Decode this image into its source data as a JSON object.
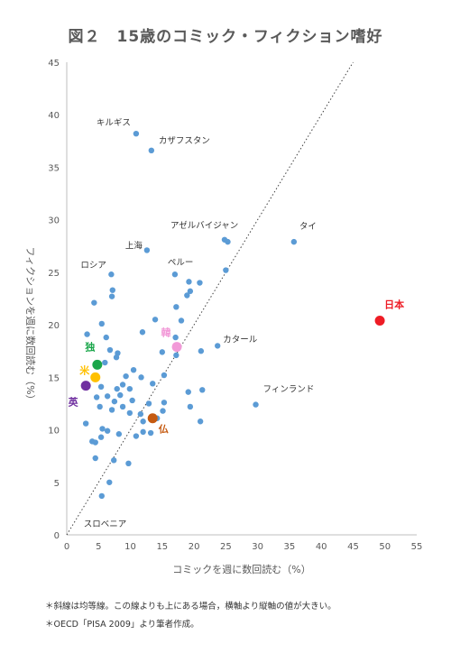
{
  "title": "図２　15歳のコミック・フィクション嗜好",
  "notes": [
    "＊斜線は均等線。この線よりも上にある場合，横軸より縦軸の値が大きい。",
    "＊OECD「PISA 2009」より筆者作成。"
  ],
  "chart_data": {
    "type": "scatter",
    "xlabel": "コミックを週に数回読む（%）",
    "ylabel": "フィクションを週に数回読む（%）",
    "xlim": [
      0,
      55
    ],
    "ylim": [
      0,
      45
    ],
    "xticks": [
      0,
      5,
      10,
      15,
      20,
      25,
      30,
      35,
      40,
      45,
      50,
      55
    ],
    "yticks": [
      0,
      5,
      10,
      15,
      20,
      25,
      30,
      35,
      40,
      45
    ],
    "grid": false,
    "reference_line": {
      "style": "dotted",
      "from": [
        0,
        0
      ],
      "to": [
        45,
        45
      ]
    },
    "point_color": "#5b9bd5",
    "labeled_points": [
      {
        "label": "キルギス",
        "x": 10.9,
        "y": 38.2
      },
      {
        "label": "カザフスタン",
        "x": 13.3,
        "y": 36.6
      },
      {
        "label": "アゼルバイジャン",
        "x": 24.8,
        "y": 28.1
      },
      {
        "label": "タイ",
        "x": 35.7,
        "y": 27.9
      },
      {
        "label": "上海",
        "x": 12.6,
        "y": 27.1
      },
      {
        "label": "ロシア",
        "x": 7.0,
        "y": 24.8
      },
      {
        "label": "ペルー",
        "x": 17.0,
        "y": 24.8
      },
      {
        "label": "カタール",
        "x": 23.7,
        "y": 18.0
      },
      {
        "label": "フィンランド",
        "x": 29.7,
        "y": 12.4
      },
      {
        "label": "スロベニア",
        "x": 5.5,
        "y": 3.7
      }
    ],
    "highlighted_points": [
      {
        "label": "日本",
        "x": 49.2,
        "y": 20.4,
        "color": "#ee1c25"
      },
      {
        "label": "韓",
        "x": 17.3,
        "y": 17.9,
        "color": "#f29ad8"
      },
      {
        "label": "独",
        "x": 4.8,
        "y": 16.2,
        "color": "#1aa64a"
      },
      {
        "label": "米",
        "x": 4.5,
        "y": 15.0,
        "color": "#ffc000"
      },
      {
        "label": "英",
        "x": 3.0,
        "y": 14.2,
        "color": "#7030a0"
      },
      {
        "label": "仏",
        "x": 13.5,
        "y": 11.1,
        "color": "#c55a11"
      }
    ],
    "other_points": [
      [
        4.3,
        22.1
      ],
      [
        3.2,
        19.1
      ],
      [
        5.5,
        20.1
      ],
      [
        6.2,
        18.8
      ],
      [
        7.2,
        23.3
      ],
      [
        7.1,
        22.7
      ],
      [
        6.8,
        17.6
      ],
      [
        8.0,
        17.3
      ],
      [
        6.0,
        16.4
      ],
      [
        7.8,
        16.9
      ],
      [
        9.3,
        15.1
      ],
      [
        11.7,
        15.0
      ],
      [
        5.4,
        14.1
      ],
      [
        7.9,
        13.9
      ],
      [
        8.8,
        14.3
      ],
      [
        9.9,
        13.9
      ],
      [
        4.7,
        13.1
      ],
      [
        6.4,
        13.2
      ],
      [
        7.5,
        12.7
      ],
      [
        8.4,
        13.3
      ],
      [
        10.3,
        12.8
      ],
      [
        5.2,
        12.2
      ],
      [
        7.1,
        11.9
      ],
      [
        8.8,
        12.2
      ],
      [
        9.9,
        11.6
      ],
      [
        11.6,
        11.5
      ],
      [
        12.9,
        12.5
      ],
      [
        15.1,
        11.8
      ],
      [
        14.2,
        11.1
      ],
      [
        12.0,
        10.8
      ],
      [
        3.0,
        10.6
      ],
      [
        5.6,
        10.1
      ],
      [
        6.4,
        9.9
      ],
      [
        8.2,
        9.6
      ],
      [
        10.9,
        9.4
      ],
      [
        12.0,
        9.8
      ],
      [
        13.2,
        9.7
      ],
      [
        4.0,
        8.9
      ],
      [
        4.5,
        8.8
      ],
      [
        5.4,
        9.3
      ],
      [
        7.4,
        7.1
      ],
      [
        9.7,
        6.8
      ],
      [
        4.5,
        7.3
      ],
      [
        6.7,
        5.0
      ],
      [
        13.9,
        20.5
      ],
      [
        15.0,
        17.4
      ],
      [
        11.9,
        19.3
      ],
      [
        18.0,
        20.4
      ],
      [
        17.2,
        21.7
      ],
      [
        18.9,
        22.8
      ],
      [
        19.4,
        23.2
      ],
      [
        20.9,
        24.0
      ],
      [
        19.2,
        24.1
      ],
      [
        17.1,
        18.8
      ],
      [
        17.2,
        17.1
      ],
      [
        21.1,
        17.5
      ],
      [
        25.0,
        25.2
      ],
      [
        25.3,
        27.9
      ],
      [
        15.3,
        15.2
      ],
      [
        19.1,
        13.6
      ],
      [
        19.4,
        12.2
      ],
      [
        21.3,
        13.8
      ],
      [
        21.0,
        10.8
      ],
      [
        15.3,
        12.6
      ],
      [
        10.5,
        15.7
      ],
      [
        13.5,
        14.4
      ]
    ]
  }
}
